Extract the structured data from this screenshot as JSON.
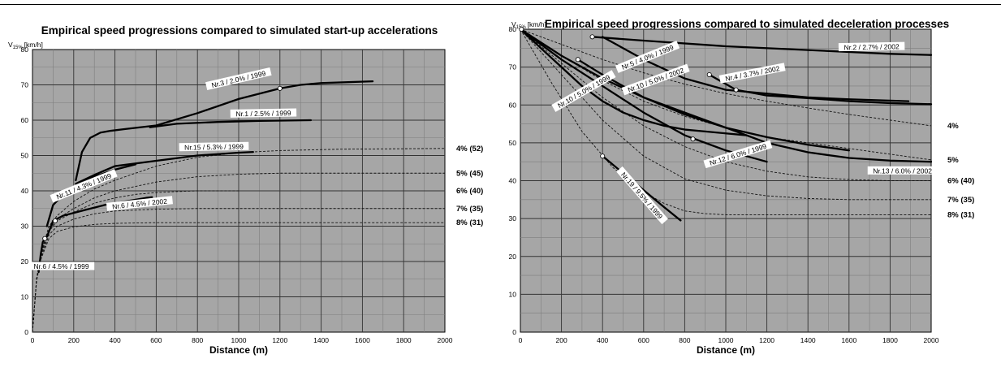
{
  "chart_data": [
    {
      "type": "line",
      "title": "Empirical speed progressions compared to simulated start-up accelerations",
      "ylabel": "V15% [km/h]",
      "ylabel_main": "V",
      "ylabel_sub": "15%",
      "ylabel_unit": "[km/h]",
      "xlabel": "Distance (m)",
      "xlim": [
        0,
        2000
      ],
      "ylim": [
        0,
        80
      ],
      "x_ticks": [
        0,
        200,
        400,
        600,
        800,
        1000,
        1200,
        1400,
        1600,
        1800,
        2000
      ],
      "y_ticks": [
        0,
        10,
        20,
        30,
        40,
        50,
        60,
        70,
        80
      ],
      "grid": true,
      "background": "#a6a6a6",
      "simulated_series": [
        {
          "label": "4% (52)",
          "x": [
            0,
            20,
            40,
            80,
            120,
            200,
            300,
            400,
            600,
            800,
            1000,
            1200,
            1500,
            2000
          ],
          "y": [
            0,
            15,
            22,
            30,
            33,
            37,
            40.5,
            43,
            47,
            49.5,
            50.8,
            51.4,
            51.8,
            52
          ]
        },
        {
          "label": "5% (45)",
          "x": [
            0,
            20,
            40,
            80,
            120,
            200,
            300,
            400,
            600,
            800,
            1000,
            1200,
            1500,
            2000
          ],
          "y": [
            0,
            15,
            22,
            29,
            32,
            35,
            38,
            40,
            42.5,
            44,
            44.7,
            45,
            45,
            45
          ]
        },
        {
          "label": "6% (40)",
          "x": [
            0,
            20,
            40,
            80,
            120,
            200,
            300,
            400,
            500,
            600,
            700,
            800,
            900,
            1000
          ],
          "y": [
            0,
            15,
            21.5,
            28.5,
            31.5,
            34,
            36.5,
            38,
            39,
            39.5,
            39.8,
            40,
            40,
            40
          ]
        },
        {
          "label": "7% (35)",
          "x": [
            0,
            20,
            40,
            80,
            120,
            200,
            300,
            400,
            600,
            800,
            1000,
            1500,
            2000
          ],
          "y": [
            0,
            15,
            21,
            27.5,
            30,
            32,
            33.5,
            34.3,
            34.8,
            35,
            35,
            35,
            35
          ]
        },
        {
          "label": "8% (31)",
          "x": [
            0,
            20,
            40,
            80,
            120,
            200,
            300,
            400,
            600,
            800,
            1000,
            1500,
            2000
          ],
          "y": [
            0,
            14.5,
            20.5,
            26.5,
            28.5,
            29.8,
            30.5,
            30.8,
            31,
            31,
            31,
            31,
            31
          ]
        }
      ],
      "empirical_series": [
        {
          "label": "Nr.3 / 2.0% / 1999",
          "x": [
            210,
            240,
            280,
            330,
            380,
            450,
            600,
            800,
            1000,
            1200,
            1300,
            1400,
            1650
          ],
          "y": [
            43,
            51,
            55,
            56.5,
            57,
            57.5,
            58.5,
            62,
            66,
            69,
            70,
            70.5,
            71
          ]
        },
        {
          "label": "Nr.1 / 2.5% / 1999",
          "x": [
            570,
            700,
            900,
            1100,
            1350
          ],
          "y": [
            58,
            59,
            59.5,
            59.8,
            60
          ]
        },
        {
          "label": "Nr.15 / 5.3% / 1999",
          "x": [
            210,
            300,
            400,
            600,
            800,
            1000,
            1070
          ],
          "y": [
            42,
            44.5,
            47,
            48.5,
            50,
            50.8,
            51
          ]
        },
        {
          "label": "Nr.11 / 4.3% / 1999",
          "x": [
            70,
            100,
            150,
            200,
            300,
            400,
            500
          ],
          "y": [
            30,
            36,
            39,
            41,
            44,
            46,
            47.5
          ]
        },
        {
          "label": "Nr.6 / 4.5% / 2002",
          "x": [
            100,
            150,
            250,
            350,
            450,
            550,
            580
          ],
          "y": [
            31.5,
            33,
            34.5,
            36,
            37,
            38,
            38.2
          ]
        },
        {
          "label": "Nr.6 / 4.5% / 1999",
          "x": [
            30,
            40,
            50,
            60,
            70,
            80,
            100
          ],
          "y": [
            17,
            22,
            25.5,
            26.5,
            27,
            28.5,
            31.5
          ]
        }
      ],
      "markers": [
        [
          60,
          26.5
        ],
        [
          110,
          31.5
        ],
        [
          1200,
          69
        ]
      ],
      "labels": [
        {
          "text": "Nr.3 / 2.0% / 1999",
          "x": 1000,
          "y": 71.5,
          "angle": -13
        },
        {
          "text": "Nr.1 / 2.5% / 1999",
          "x": 1120,
          "y": 61.8,
          "angle": -1
        },
        {
          "text": "Nr.15 / 5.3% / 1999",
          "x": 880,
          "y": 52.3,
          "angle": -1
        },
        {
          "text": "Nr.11 / 4.3% / 1999",
          "x": 250,
          "y": 41.2,
          "angle": -22
        },
        {
          "text": "Nr.6 / 4.5% / 2002",
          "x": 520,
          "y": 36.2,
          "angle": -6
        },
        {
          "text": "Nr.6 / 4.5% / 1999",
          "x": 140,
          "y": 18.5,
          "angle": 0
        }
      ]
    },
    {
      "type": "line",
      "title": "Empirical speed progressions compared to simulated deceleration processes",
      "ylabel": "V15% [km/h]",
      "ylabel_main": "V",
      "ylabel_sub": "15%",
      "ylabel_unit": "[km/h]",
      "xlabel": "Distance (m)",
      "xlim": [
        0,
        2000
      ],
      "ylim": [
        0,
        80
      ],
      "x_ticks": [
        0,
        200,
        400,
        600,
        800,
        1000,
        1200,
        1400,
        1600,
        1800,
        2000
      ],
      "y_ticks": [
        0,
        10,
        20,
        30,
        40,
        50,
        60,
        70,
        80
      ],
      "grid": true,
      "background": "#a6a6a6",
      "simulated_series": [
        {
          "label": "4%",
          "x": [
            0,
            200,
            400,
            600,
            800,
            1000,
            1200,
            1400,
            1600,
            1800,
            2000
          ],
          "y": [
            80,
            76,
            72,
            68.5,
            65.5,
            63,
            61,
            59.2,
            57.5,
            56,
            54.5
          ]
        },
        {
          "label": "5%",
          "x": [
            0,
            200,
            400,
            600,
            800,
            1000,
            1200,
            1400,
            1600,
            1800,
            2000
          ],
          "y": [
            80,
            73,
            66.5,
            61,
            57,
            54,
            51.5,
            50,
            48.5,
            47,
            45.5
          ]
        },
        {
          "label": "6% (40)",
          "x": [
            0,
            200,
            400,
            600,
            800,
            1000,
            1200,
            1400,
            1600,
            1800,
            2000
          ],
          "y": [
            80,
            71,
            62,
            54.5,
            49,
            45,
            42.5,
            41,
            40.3,
            40,
            40
          ]
        },
        {
          "label": "7% (35)",
          "x": [
            0,
            200,
            400,
            600,
            800,
            1000,
            1200,
            1400,
            1600,
            1800,
            2000
          ],
          "y": [
            80,
            68,
            56,
            46.5,
            40.5,
            37.5,
            36,
            35.3,
            35,
            35,
            35
          ]
        },
        {
          "label": "8% (31)",
          "x": [
            0,
            150,
            300,
            450,
            600,
            700,
            800,
            900,
            1000,
            1200,
            1500,
            2000
          ],
          "y": [
            80,
            66,
            53,
            43.5,
            37,
            34,
            32,
            31.3,
            31,
            31,
            31,
            31
          ]
        }
      ],
      "empirical_series": [
        {
          "label": "Nr.2 / 2.7% / 2002",
          "x": [
            350,
            600,
            1000,
            1400,
            1800,
            2000
          ],
          "y": [
            78,
            77,
            75.5,
            74.5,
            73.5,
            73.2
          ]
        },
        {
          "label": "Nr.5 / 4.0% / 1999",
          "x": [
            400,
            600,
            800,
            1000,
            1200,
            1400,
            1600,
            1890
          ],
          "y": [
            78,
            72,
            67,
            64,
            63,
            62,
            61.5,
            61
          ]
        },
        {
          "label": "Nr.4 / 3.7% / 2002",
          "x": [
            920,
            1050,
            1200,
            1400,
            1600,
            1800,
            2000
          ],
          "y": [
            68,
            64,
            62.5,
            61.8,
            61,
            60.5,
            60.2
          ]
        },
        {
          "label": "Nr.10 / 5.0% / 2002",
          "x": [
            280,
            400,
            600,
            800,
            1000,
            1200,
            1400,
            1600
          ],
          "y": [
            72,
            68,
            62,
            57.5,
            54,
            51.5,
            49.5,
            48
          ]
        },
        {
          "label": "Nr.10 / 5.0% / 1999",
          "x": [
            0,
            100,
            200,
            300,
            400,
            500,
            600,
            700,
            800,
            900,
            1000,
            1100
          ],
          "y": [
            80,
            75,
            70,
            65,
            61,
            58,
            56,
            54.5,
            53.5,
            53,
            52.5,
            52
          ]
        },
        {
          "label": "Nr.12 / 6.0% / 1999",
          "x": [
            0,
            200,
            400,
            600,
            800,
            1000,
            1200
          ],
          "y": [
            80,
            72,
            65,
            58,
            52,
            48,
            45
          ]
        },
        {
          "label": "Nr.13 / 6.0% / 2002",
          "x": [
            0,
            200,
            400,
            600,
            800,
            1000,
            1200,
            1400,
            1600,
            1800,
            2000
          ],
          "y": [
            80,
            73,
            67,
            62,
            58,
            54,
            50,
            47.5,
            46,
            45.3,
            45
          ]
        },
        {
          "label": "Nr.19 / 9.5% / 1999",
          "x": [
            400,
            500,
            600,
            700,
            780
          ],
          "y": [
            46.5,
            42,
            37.5,
            33,
            29.5
          ]
        }
      ],
      "markers": [
        [
          5,
          80
        ],
        [
          350,
          78
        ],
        [
          280,
          72
        ],
        [
          920,
          68
        ],
        [
          1050,
          64
        ],
        [
          840,
          51
        ],
        [
          400,
          46.5
        ]
      ],
      "labels": [
        {
          "text": "Nr.2 / 2.7% / 2002",
          "x": 1710,
          "y": 75.2,
          "angle": -1
        },
        {
          "text": "Nr.5 / 4.0% / 1999",
          "x": 620,
          "y": 72.5,
          "angle": -22
        },
        {
          "text": "Nr.4 / 3.7% / 2002",
          "x": 1130,
          "y": 68.2,
          "angle": -11
        },
        {
          "text": "Nr.10 / 5.0% / 2002",
          "x": 660,
          "y": 66.5,
          "angle": -20
        },
        {
          "text": "Nr.10 / 5.0% / 1999",
          "x": 310,
          "y": 63.5,
          "angle": -30
        },
        {
          "text": "Nr.12 / 6.0% / 1999",
          "x": 1060,
          "y": 46.8,
          "angle": -17
        },
        {
          "text": "Nr.13 / 6.0% / 2002",
          "x": 1860,
          "y": 42.5,
          "angle": 0
        },
        {
          "text": "Nr.19 / 9.5% / 1999",
          "x": 590,
          "y": 36,
          "angle": 49
        }
      ]
    }
  ]
}
